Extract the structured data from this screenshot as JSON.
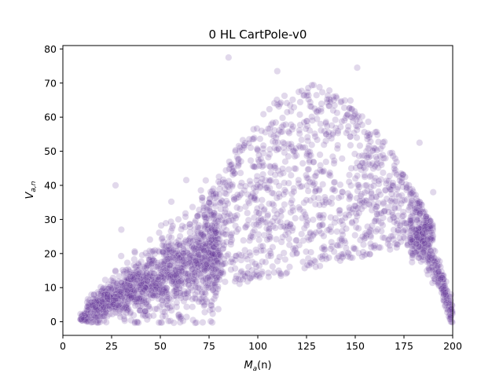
{
  "chart_data": {
    "type": "scatter",
    "title": "0 HL CartPole-v0",
    "xlabel": {
      "main": "M",
      "sub": "a",
      "arg": "(n)"
    },
    "ylabel": {
      "main": "V",
      "sub": "a,n"
    },
    "xlim": [
      0,
      200
    ],
    "ylim": [
      -4,
      81
    ],
    "xticks": [
      0,
      25,
      50,
      75,
      100,
      125,
      150,
      175,
      200
    ],
    "yticks": [
      0,
      10,
      20,
      30,
      40,
      50,
      60,
      70,
      80
    ],
    "grid": false,
    "legend": "none",
    "color": "#6a3d9a",
    "alpha": 0.2,
    "approximate_point_count": 3000,
    "density_profile": [
      {
        "x_range": [
          8,
          12
        ],
        "y_center": 1,
        "y_spread": 1,
        "density": "high"
      },
      {
        "x_range": [
          12,
          50
        ],
        "y_center_start": 4,
        "y_center_end": 15,
        "y_spread": 5,
        "density": "very high"
      },
      {
        "x_range": [
          50,
          80
        ],
        "y_center_start": 15,
        "y_center_end": 22,
        "y_spread": 8,
        "density": "high"
      },
      {
        "x_range": [
          75,
          180
        ],
        "y_center": 35,
        "y_spread": 18,
        "density": "medium"
      },
      {
        "x_range": [
          180,
          200
        ],
        "y_center_start": 22,
        "y_center_end": 1,
        "y_spread": 4,
        "density": "high"
      }
    ],
    "notable_points": [
      {
        "x": 85,
        "y": 77.5
      },
      {
        "x": 151,
        "y": 74.5
      },
      {
        "x": 110,
        "y": 73.5
      },
      {
        "x": 27,
        "y": 40
      },
      {
        "x": 30,
        "y": 27
      },
      {
        "x": 183,
        "y": 52.5
      },
      {
        "x": 190,
        "y": 38
      }
    ]
  }
}
